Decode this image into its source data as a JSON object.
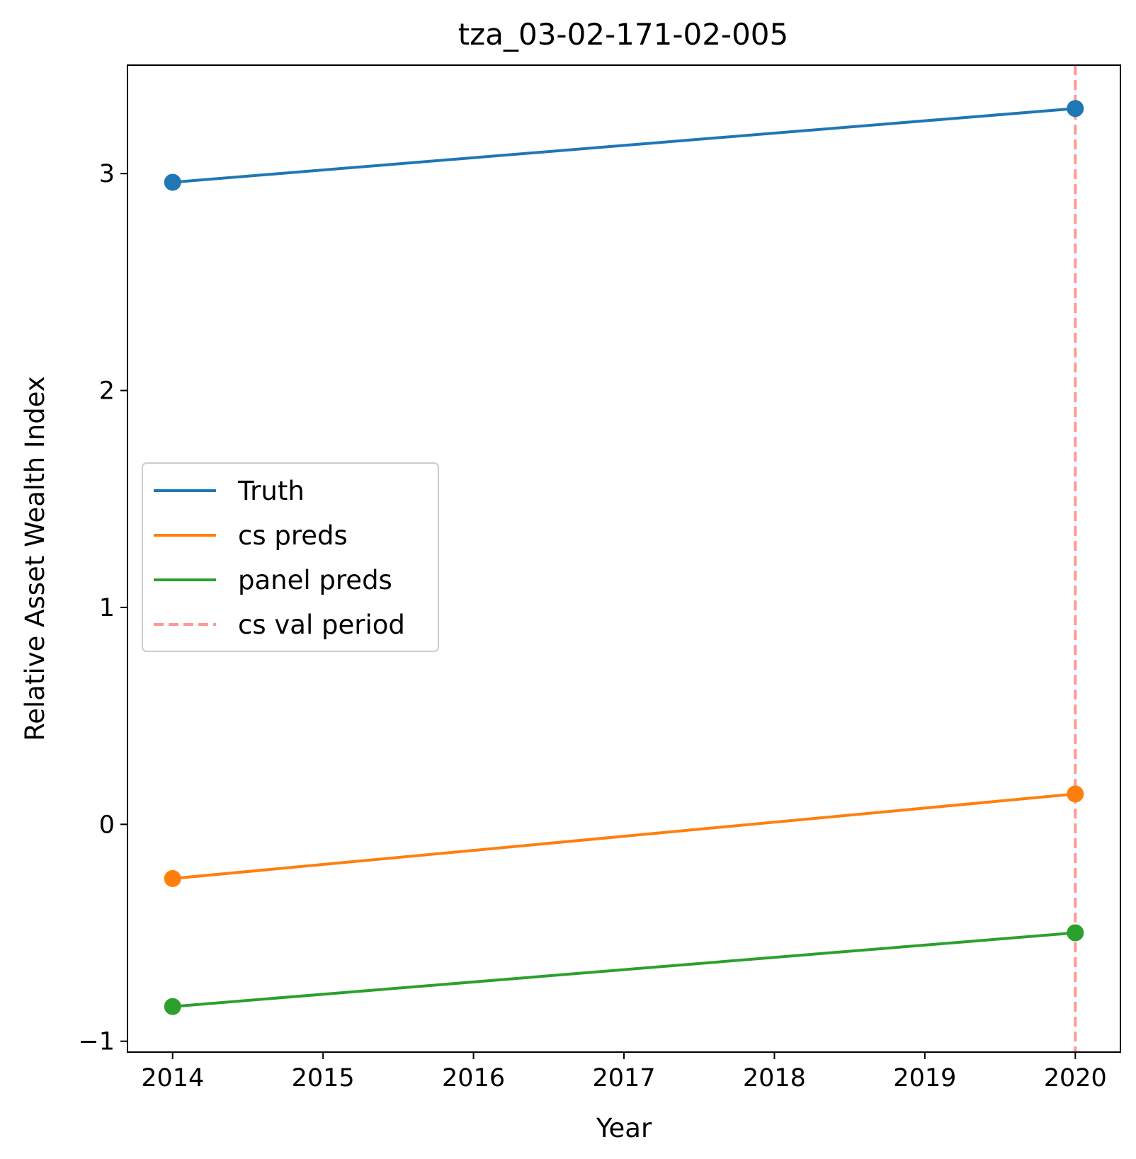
{
  "chart_data": {
    "type": "line",
    "title": "tza_03-02-171-02-005",
    "xlabel": "Year",
    "ylabel": "Relative Asset Wealth Index",
    "x": [
      2014,
      2020
    ],
    "xlim": [
      2013.7,
      2020.3
    ],
    "ylim": [
      -1.05,
      3.5
    ],
    "xticks": [
      2014,
      2015,
      2016,
      2017,
      2018,
      2019,
      2020
    ],
    "yticks": [
      -1,
      0,
      1,
      2,
      3
    ],
    "ytick_labels": [
      "−1",
      "0",
      "1",
      "2",
      "3"
    ],
    "grid": false,
    "legend_position": "center-left",
    "series": [
      {
        "name": "Truth",
        "color": "#1f77b4",
        "values": [
          2.96,
          3.3
        ],
        "marker": "circle"
      },
      {
        "name": "cs preds",
        "color": "#ff7f0e",
        "values": [
          -0.25,
          0.14
        ],
        "marker": "circle"
      },
      {
        "name": "panel preds",
        "color": "#2ca02c",
        "values": [
          -0.84,
          -0.5
        ],
        "marker": "circle"
      }
    ],
    "reference_lines": [
      {
        "name": "cs val period",
        "orientation": "vertical",
        "x": 2020,
        "color": "#ff9896",
        "style": "dashed"
      }
    ]
  }
}
